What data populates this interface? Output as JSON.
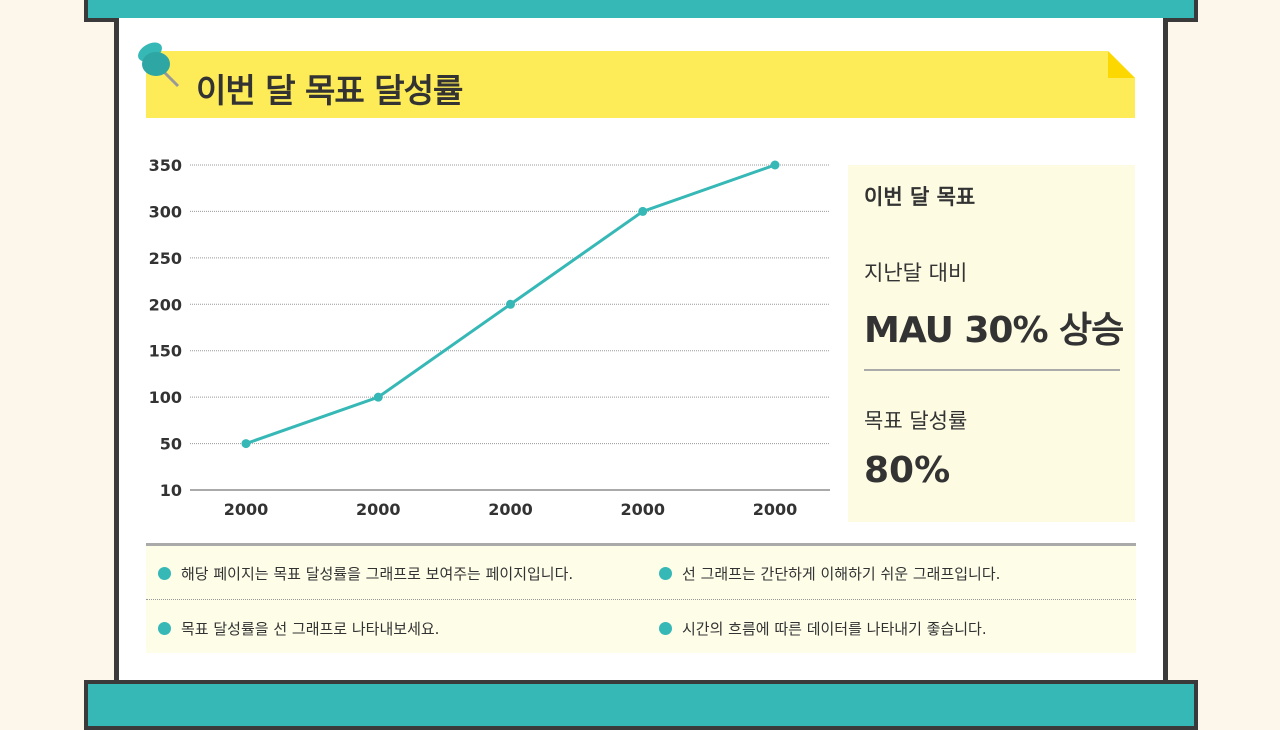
{
  "header": {
    "title": "이번 달 목표 달성률"
  },
  "side": {
    "heading": "이번 달 목표",
    "label1": "지난달 대비",
    "value1": "MAU 30% 상승",
    "label2": "목표 달성률",
    "value2": "80%"
  },
  "notes": [
    "해당 페이지는 목표 달성률을 그래프로 보여주는 페이지입니다.",
    "선 그래프는 간단하게 이해하기 쉬운 그래프입니다.",
    "목표 달성률을 선 그래프로 나타내보세요.",
    "시간의 흐름에 따른 데이터를 나타내기 좋습니다."
  ],
  "colors": {
    "accent": "#36b8b6",
    "banner": "#fdec57",
    "frame": "#3a3a3a"
  },
  "chart_data": {
    "type": "line",
    "categories": [
      "2000",
      "2000",
      "2000",
      "2000",
      "2000"
    ],
    "values": [
      50,
      100,
      200,
      300,
      350
    ],
    "ylim": [
      0,
      350
    ],
    "yticks": [
      "10",
      "50",
      "100",
      "150",
      "200",
      "250",
      "300",
      "350"
    ],
    "grid": true,
    "title": "",
    "xlabel": "",
    "ylabel": ""
  }
}
